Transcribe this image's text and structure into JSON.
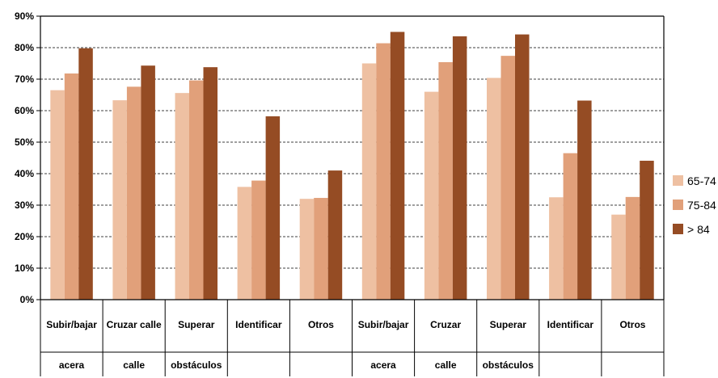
{
  "chart_data": {
    "type": "bar",
    "title": "",
    "xlabel": "",
    "ylabel": "",
    "ylim": [
      0,
      90
    ],
    "yticks": [
      "0%",
      "10%",
      "20%",
      "30%",
      "40%",
      "50%",
      "60%",
      "70%",
      "80%",
      "90%"
    ],
    "grid": true,
    "legend_position": "right",
    "categories": [
      [
        "Subir/bajar",
        "acera"
      ],
      [
        "Cruzar calle",
        "calle"
      ],
      [
        "Superar",
        "obstáculos"
      ],
      [
        "Identificar",
        ""
      ],
      [
        "Otros",
        ""
      ],
      [
        "Subir/bajar",
        "acera"
      ],
      [
        "Cruzar",
        "calle"
      ],
      [
        "Superar",
        "obstáculos"
      ],
      [
        "Identificar",
        ""
      ],
      [
        "Otros",
        ""
      ]
    ],
    "series": [
      {
        "name": "65-74",
        "color": "#EEC0A2",
        "values": [
          66.5,
          63.3,
          65.6,
          35.8,
          32.0,
          75.0,
          66.0,
          70.4,
          32.5,
          27.0
        ]
      },
      {
        "name": "75-84",
        "color": "#E1A07A",
        "values": [
          71.8,
          67.6,
          69.6,
          37.8,
          32.3,
          81.4,
          75.4,
          77.4,
          46.5,
          32.6
        ]
      },
      {
        "name": "> 84",
        "color": "#954C24",
        "values": [
          79.8,
          74.3,
          73.8,
          58.2,
          41.0,
          85.0,
          83.6,
          84.2,
          63.2,
          44.1
        ]
      }
    ]
  }
}
